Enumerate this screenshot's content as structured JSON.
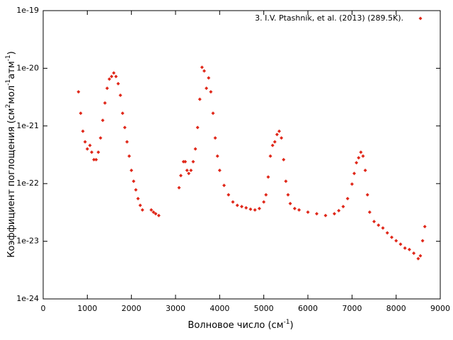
{
  "chart_data": {
    "type": "scatter",
    "xlabel": [
      "Волновое число (см",
      "-1",
      ")"
    ],
    "ylabel": [
      "Коэффициент поглощения (см",
      "2",
      "мол",
      "-1",
      "атм",
      "-1",
      ")"
    ],
    "xlim": [
      0,
      9000
    ],
    "xticks": [
      0,
      1000,
      2000,
      3000,
      4000,
      5000,
      6000,
      7000,
      8000,
      9000
    ],
    "ylim": [
      1e-24,
      1e-19
    ],
    "ylog": true,
    "yticks": [
      {
        "value": 1e-24,
        "label": "1e-24"
      },
      {
        "value": 1e-23,
        "label": "1e-23"
      },
      {
        "value": 1e-22,
        "label": "1e-22"
      },
      {
        "value": 1e-21,
        "label": "1e-21"
      },
      {
        "value": 1e-20,
        "label": "1e-20"
      },
      {
        "value": 1e-19,
        "label": "1e-19"
      }
    ],
    "legend": "top-right",
    "series": [
      {
        "name": "3. I.V. Ptashnik, et al. (2013) (289.5K).",
        "color": "#e0281a",
        "x": [
          800,
          850,
          900,
          950,
          1000,
          1060,
          1100,
          1150,
          1200,
          1250,
          1300,
          1350,
          1400,
          1450,
          1500,
          1550,
          1600,
          1650,
          1700,
          1750,
          1800,
          1850,
          1900,
          1950,
          2000,
          2050,
          2100,
          2150,
          2200,
          2250,
          2450,
          2500,
          2550,
          2620,
          3080,
          3120,
          3180,
          3220,
          3260,
          3300,
          3350,
          3400,
          3450,
          3500,
          3550,
          3600,
          3650,
          3700,
          3750,
          3800,
          3850,
          3900,
          3950,
          4000,
          4100,
          4200,
          4300,
          4400,
          4500,
          4600,
          4700,
          4800,
          4900,
          5000,
          5050,
          5100,
          5150,
          5200,
          5250,
          5300,
          5350,
          5400,
          5450,
          5500,
          5550,
          5600,
          5700,
          5800,
          6000,
          6200,
          6400,
          6600,
          6700,
          6800,
          6900,
          7000,
          7050,
          7100,
          7150,
          7200,
          7250,
          7300,
          7350,
          7400,
          7500,
          7600,
          7700,
          7800,
          7900,
          8000,
          8100,
          8200,
          8300,
          8400,
          8500,
          8550,
          8600,
          8650
        ],
        "values": [
          3.9e-21,
          1.66e-21,
          8.1e-22,
          5.3e-22,
          4e-22,
          4.6e-22,
          3.5e-22,
          2.6e-22,
          2.6e-22,
          3.5e-22,
          6.2e-22,
          1.25e-21,
          2.5e-21,
          4.5e-21,
          6.5e-21,
          7.2e-21,
          8.3e-21,
          7.2e-21,
          5.4e-21,
          3.4e-21,
          1.66e-21,
          9.4e-22,
          5.3e-22,
          3e-22,
          1.7e-22,
          1.1e-22,
          7.8e-23,
          5.5e-23,
          4.2e-23,
          3.5e-23,
          3.5e-23,
          3.2e-23,
          3e-23,
          2.8e-23,
          8.5e-23,
          1.38e-22,
          2.4e-22,
          2.4e-22,
          1.7e-22,
          1.5e-22,
          1.7e-22,
          2.4e-22,
          4e-22,
          9.4e-22,
          2.9e-21,
          1.04e-20,
          9e-21,
          4.5e-21,
          6.8e-21,
          3.9e-21,
          1.66e-21,
          6.2e-22,
          3e-22,
          1.7e-22,
          9.3e-23,
          6.4e-23,
          4.8e-23,
          4.2e-23,
          4e-23,
          3.8e-23,
          3.6e-23,
          3.5e-23,
          3.7e-23,
          4.8e-23,
          6.4e-23,
          1.3e-22,
          3e-22,
          4.6e-22,
          5.3e-22,
          7.1e-22,
          8.1e-22,
          6.2e-22,
          2.6e-22,
          1.1e-22,
          6.4e-23,
          4.5e-23,
          3.7e-23,
          3.5e-23,
          3.2e-23,
          3e-23,
          2.8e-23,
          3e-23,
          3.4e-23,
          4e-23,
          5.5e-23,
          9.8e-23,
          1.5e-22,
          2.3e-22,
          2.8e-22,
          3.5e-22,
          3e-22,
          1.7e-22,
          6.4e-23,
          3.2e-23,
          2.2e-23,
          1.9e-23,
          1.7e-23,
          1.4e-23,
          1.17e-23,
          1.02e-23,
          8.9e-24,
          7.6e-24,
          7.2e-24,
          6.2e-24,
          5e-24,
          5.6e-24,
          1.02e-23,
          1.8e-23
        ]
      }
    ]
  }
}
